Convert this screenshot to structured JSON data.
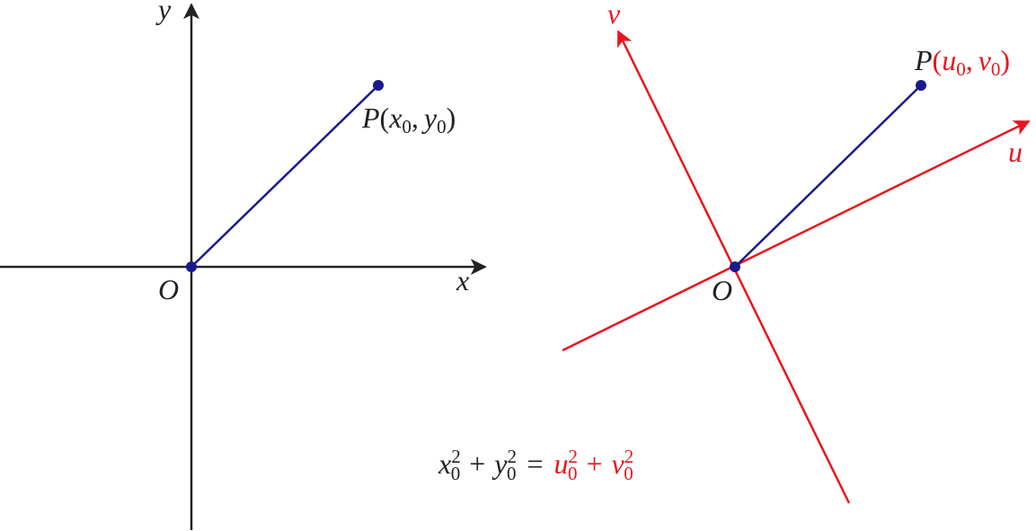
{
  "left": {
    "y_axis": "y",
    "x_axis": "x",
    "origin": "O",
    "point": {
      "name": "P",
      "open": "(",
      "a": "x",
      "a_sub": "0",
      "sep": ",",
      "b": "y",
      "b_sub": "0",
      "close": ")"
    }
  },
  "right": {
    "v_axis": "v",
    "u_axis": "u",
    "origin": "O",
    "point": {
      "name": "P",
      "open": "(",
      "a": "u",
      "a_sub": "0",
      "sep": ",",
      "b": "v",
      "b_sub": "0",
      "close": ")"
    }
  },
  "equation": {
    "t1": {
      "base": "x",
      "sub": "0",
      "sup": "2"
    },
    "plus1": "+",
    "t2": {
      "base": "y",
      "sub": "0",
      "sup": "2"
    },
    "eq": "=",
    "t3": {
      "base": "u",
      "sub": "0",
      "sup": "2"
    },
    "plus2": "+",
    "t4": {
      "base": "v",
      "sub": "0",
      "sup": "2"
    }
  }
}
